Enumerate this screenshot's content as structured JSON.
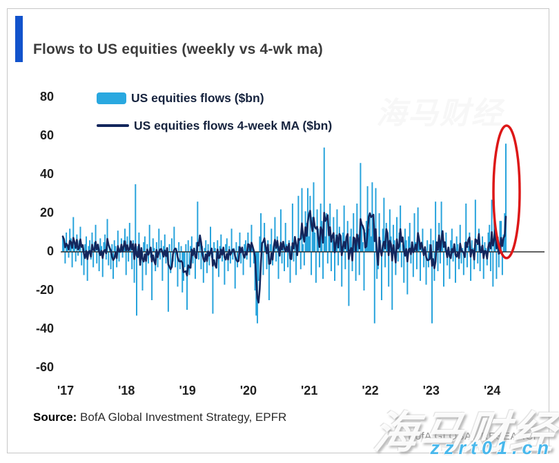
{
  "header": {
    "title": "Flows to US equities (weekly vs 4-wk ma)",
    "accent_color": "#1253cc"
  },
  "legend": [
    {
      "label": "US equities flows ($bn)",
      "swatch": "bar",
      "color": "#29a8e0"
    },
    {
      "label": "US equities flows 4-week MA ($bn)",
      "swatch": "line",
      "color": "#13265c"
    }
  ],
  "source": {
    "label": "Source:",
    "text": " BofA Global Investment Strategy, EPFR"
  },
  "branding": "BofA GLOBAL RESEARCH",
  "watermark": {
    "cn": "海马财经",
    "site": "zzrt01.cn",
    "site_color": "#49b8ec"
  },
  "chart_data": {
    "type": "combo",
    "title": "Flows to US equities (weekly vs 4-wk ma)",
    "x_unit": "week",
    "x_tick_labels": [
      "'17",
      "'18",
      "'19",
      "'20",
      "'21",
      "'22",
      "'23",
      "'24"
    ],
    "y_ticks": [
      80,
      60,
      40,
      20,
      0,
      -20,
      -40,
      -60
    ],
    "ylim": [
      -60,
      80
    ],
    "grid": false,
    "legend_position": "top-left",
    "zero_line": true,
    "series": [
      {
        "name": "US equities flows ($bn)",
        "type": "bar",
        "color": "#27a3dc",
        "values": [
          8,
          5,
          -6,
          10,
          4,
          -3,
          12,
          7,
          -8,
          18,
          3,
          -5,
          9,
          -2,
          6,
          13,
          -7,
          2,
          -12,
          4,
          8,
          -15,
          3,
          6,
          -4,
          10,
          -8,
          5,
          14,
          -6,
          2,
          -10,
          7,
          3,
          -13,
          5,
          9,
          -4,
          17,
          -7,
          2,
          -9,
          4,
          -14,
          6,
          3,
          -8,
          11,
          -5,
          2,
          7,
          -3,
          6,
          12,
          -12,
          8,
          -5,
          15,
          4,
          -9,
          6,
          -16,
          35,
          -33,
          3,
          10,
          -7,
          2,
          -20,
          5,
          8,
          -12,
          4,
          -6,
          14,
          -3,
          -25,
          7,
          2,
          -10,
          5,
          -8,
          12,
          -4,
          6,
          -15,
          3,
          9,
          -6,
          2,
          -31,
          4,
          -11,
          7,
          -5,
          13,
          -8,
          2,
          -18,
          5,
          -9,
          3,
          -21,
          -15,
          -8,
          4,
          -30,
          6,
          -12,
          3,
          8,
          -6,
          2,
          -14,
          5,
          26,
          -4,
          7,
          -9,
          3,
          -16,
          2,
          6,
          -11,
          4,
          -7,
          13,
          -3,
          -32,
          5,
          2,
          -8,
          6,
          -13,
          3,
          9,
          -5,
          2,
          -17,
          4,
          7,
          -10,
          3,
          -6,
          12,
          -4,
          2,
          -19,
          5,
          -8,
          3,
          10,
          -6,
          2,
          -12,
          4,
          6,
          -4,
          10,
          3,
          -8,
          14,
          2,
          -6,
          -20,
          -33,
          -37,
          -15,
          8,
          20,
          5,
          -12,
          15,
          3,
          -9,
          6,
          -25,
          4,
          12,
          -7,
          2,
          18,
          -5,
          8,
          -14,
          3,
          22,
          -6,
          2,
          -10,
          15,
          4,
          -8,
          6,
          -16,
          3,
          25,
          -5,
          8,
          -12,
          2,
          29,
          6,
          -9,
          33,
          4,
          -7,
          21,
          15,
          33,
          8,
          29,
          -12,
          18,
          36,
          10,
          -16,
          22,
          12,
          -8,
          25,
          16,
          -14,
          54,
          8,
          20,
          -6,
          12,
          25,
          -10,
          6,
          18,
          -15,
          9,
          22,
          -7,
          13,
          5,
          -18,
          10,
          24,
          -9,
          6,
          16,
          -28,
          8,
          12,
          -10,
          20,
          6,
          -15,
          25,
          9,
          -12,
          46,
          14,
          5,
          -20,
          10,
          16,
          34,
          12,
          18,
          8,
          36,
          15,
          -37,
          33,
          -14,
          -9,
          20,
          6,
          -25,
          12,
          28,
          -8,
          15,
          4,
          -18,
          22,
          8,
          -30,
          14,
          6,
          -12,
          18,
          -5,
          10,
          24,
          -8,
          4,
          -16,
          12,
          6,
          -22,
          8,
          15,
          -6,
          3,
          -13,
          20,
          5,
          -9,
          23,
          7,
          -15,
          4,
          12,
          -8,
          2,
          -17,
          6,
          -8,
          4,
          12,
          -37,
          6,
          -15,
          26,
          3,
          -10,
          15,
          -6,
          26,
          8,
          -18,
          4,
          10,
          -7,
          2,
          -14,
          6,
          12,
          -5,
          3,
          -16,
          8,
          4,
          -9,
          14,
          -6,
          2,
          -12,
          5,
          25,
          -8,
          3,
          10,
          -15,
          6,
          2,
          -9,
          27,
          4,
          -6,
          12,
          -10,
          3,
          8,
          -14,
          5,
          2,
          -7,
          10,
          14,
          -10,
          27,
          -18,
          26,
          13,
          -14,
          5,
          -8,
          16,
          16,
          -12,
          9,
          20,
          56
        ]
      },
      {
        "name": "US equities flows 4-week MA ($bn)",
        "type": "line",
        "color": "#13265c",
        "derived": "4-week moving average of the weekly flows series"
      }
    ],
    "annotations": [
      {
        "type": "ellipse",
        "color": "#dd1717",
        "note": "latest weekly inflow spike ~$56bn (early 2024)"
      }
    ]
  }
}
